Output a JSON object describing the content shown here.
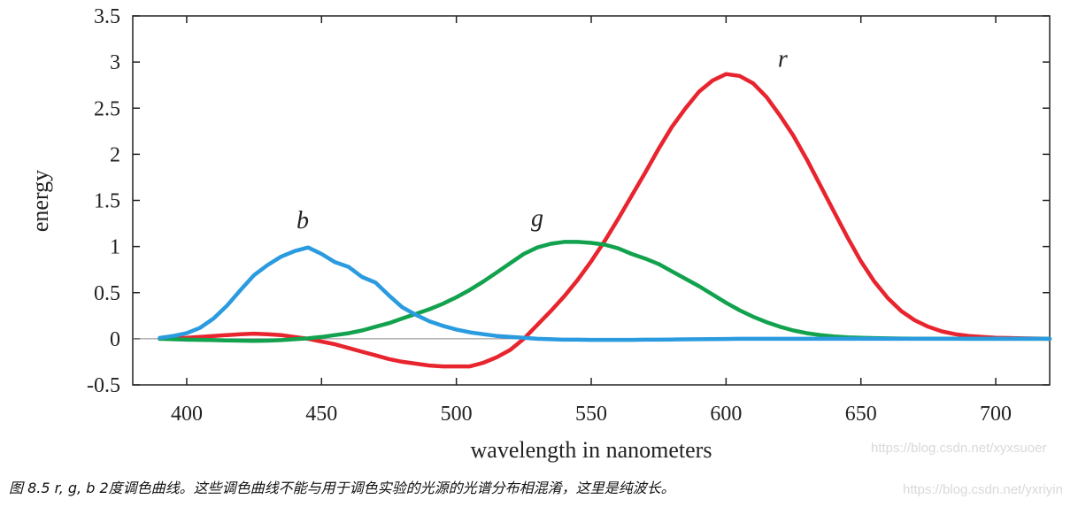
{
  "chart_data": {
    "type": "line",
    "title": "",
    "xlabel": "wavelength in nanometers",
    "ylabel": "energy",
    "xlim": [
      380,
      720
    ],
    "ylim": [
      -0.5,
      3.5
    ],
    "x_ticks": [
      "400",
      "450",
      "500",
      "550",
      "600",
      "650",
      "700"
    ],
    "x_tick_values": [
      400,
      450,
      500,
      550,
      600,
      650,
      700
    ],
    "y_ticks": [
      "3.5",
      "3",
      "2.5",
      "2",
      "1.5",
      "1",
      "0.5",
      "0",
      "-0.5"
    ],
    "y_tick_values": [
      3.5,
      3,
      2.5,
      2,
      1.5,
      1,
      0.5,
      0,
      -0.5
    ],
    "grid": false,
    "zero_line": true,
    "series": [
      {
        "name": "r",
        "label": "r",
        "color": "#e8242e",
        "x": [
          390,
          395,
          400,
          405,
          410,
          415,
          420,
          425,
          430,
          435,
          440,
          445,
          450,
          455,
          460,
          465,
          470,
          475,
          480,
          485,
          490,
          495,
          500,
          505,
          510,
          515,
          520,
          525,
          530,
          535,
          540,
          545,
          550,
          555,
          560,
          565,
          570,
          575,
          580,
          585,
          590,
          595,
          600,
          605,
          610,
          615,
          620,
          625,
          630,
          635,
          640,
          645,
          650,
          655,
          660,
          665,
          670,
          675,
          680,
          685,
          690,
          695,
          700,
          705,
          710,
          715,
          720
        ],
        "y": [
          0.0,
          0.005,
          0.01,
          0.02,
          0.03,
          0.04,
          0.05,
          0.055,
          0.05,
          0.04,
          0.02,
          0.0,
          -0.03,
          -0.06,
          -0.1,
          -0.14,
          -0.18,
          -0.22,
          -0.25,
          -0.27,
          -0.29,
          -0.3,
          -0.3,
          -0.3,
          -0.26,
          -0.2,
          -0.12,
          0.0,
          0.15,
          0.3,
          0.46,
          0.64,
          0.84,
          1.06,
          1.3,
          1.55,
          1.8,
          2.06,
          2.3,
          2.5,
          2.68,
          2.8,
          2.87,
          2.85,
          2.77,
          2.62,
          2.42,
          2.2,
          1.94,
          1.66,
          1.38,
          1.1,
          0.84,
          0.62,
          0.44,
          0.3,
          0.2,
          0.13,
          0.08,
          0.05,
          0.03,
          0.02,
          0.01,
          0.008,
          0.005,
          0.003,
          0.0
        ]
      },
      {
        "name": "g",
        "label": "g",
        "color": "#12a24e",
        "x": [
          390,
          395,
          400,
          405,
          410,
          415,
          420,
          425,
          430,
          435,
          440,
          445,
          450,
          455,
          460,
          465,
          470,
          475,
          480,
          485,
          490,
          495,
          500,
          505,
          510,
          515,
          520,
          525,
          530,
          535,
          540,
          545,
          550,
          555,
          560,
          565,
          570,
          575,
          580,
          585,
          590,
          595,
          600,
          605,
          610,
          615,
          620,
          625,
          630,
          635,
          640,
          645,
          650,
          655,
          660,
          665,
          670,
          675,
          680,
          685,
          690,
          695,
          700,
          705,
          710,
          715,
          720
        ],
        "y": [
          0.0,
          -0.005,
          -0.01,
          -0.012,
          -0.015,
          -0.018,
          -0.02,
          -0.022,
          -0.02,
          -0.015,
          -0.005,
          0.005,
          0.02,
          0.04,
          0.06,
          0.09,
          0.13,
          0.17,
          0.22,
          0.27,
          0.32,
          0.38,
          0.45,
          0.53,
          0.62,
          0.72,
          0.82,
          0.92,
          0.99,
          1.03,
          1.05,
          1.05,
          1.04,
          1.02,
          0.98,
          0.92,
          0.87,
          0.81,
          0.73,
          0.65,
          0.57,
          0.48,
          0.39,
          0.31,
          0.24,
          0.18,
          0.13,
          0.09,
          0.06,
          0.04,
          0.025,
          0.015,
          0.01,
          0.007,
          0.005,
          0.003,
          0.002,
          0.002,
          0.001,
          0.001,
          0.0,
          0.0,
          0.0,
          0.0,
          0.0,
          0.0,
          0.0
        ]
      },
      {
        "name": "b",
        "label": "b",
        "color": "#2b9be0",
        "x": [
          390,
          395,
          400,
          405,
          410,
          415,
          420,
          425,
          430,
          435,
          440,
          445,
          450,
          455,
          460,
          465,
          470,
          475,
          480,
          485,
          490,
          495,
          500,
          505,
          510,
          515,
          520,
          525,
          530,
          535,
          540,
          545,
          550,
          555,
          560,
          565,
          570,
          575,
          580,
          585,
          590,
          595,
          600,
          605,
          610,
          615,
          620,
          625,
          630,
          635,
          640,
          645,
          650,
          655,
          660,
          665,
          670,
          675,
          680,
          685,
          690,
          695,
          700,
          705,
          710,
          715,
          720
        ],
        "y": [
          0.01,
          0.03,
          0.06,
          0.12,
          0.22,
          0.36,
          0.53,
          0.69,
          0.8,
          0.89,
          0.95,
          0.99,
          0.92,
          0.83,
          0.78,
          0.67,
          0.61,
          0.47,
          0.34,
          0.26,
          0.19,
          0.14,
          0.1,
          0.07,
          0.05,
          0.03,
          0.02,
          0.01,
          0.0,
          -0.005,
          -0.01,
          -0.01,
          -0.012,
          -0.012,
          -0.012,
          -0.012,
          -0.01,
          -0.01,
          -0.008,
          -0.006,
          -0.005,
          -0.003,
          -0.002,
          0.0,
          0.0,
          0.0,
          0.0,
          0.0,
          0.0,
          0.0,
          0.0,
          0.0,
          0.0,
          0.0,
          0.0,
          0.0,
          0.0,
          0.0,
          0.0,
          0.0,
          0.0,
          0.0,
          0.0,
          0.0,
          0.0,
          0.0,
          0.0
        ]
      }
    ],
    "annotations": [
      {
        "text": "b",
        "x": 443,
        "y": 1.2
      },
      {
        "text": "g",
        "x": 530,
        "y": 1.22
      },
      {
        "text": "r",
        "x": 621,
        "y": 2.95
      }
    ]
  },
  "caption": "图 8.5  r, g, b 2度调色曲线。这些调色曲线不能与用于调色实验的光源的光谱分布相混淆，这里是纯波长。",
  "watermarks": [
    "https://blog.csdn.net/xyxsuoer",
    "https://blog.csdn.net/yxriyin"
  ]
}
